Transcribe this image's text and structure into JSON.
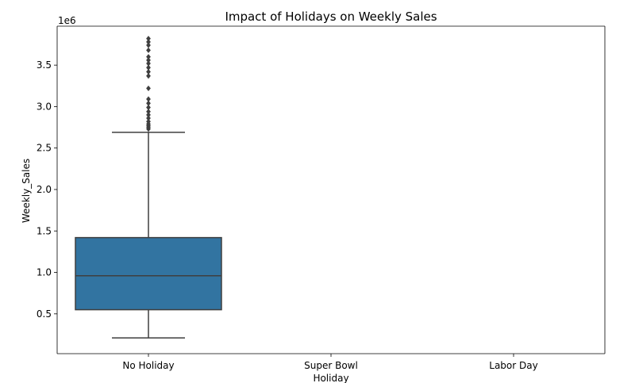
{
  "chart_data": {
    "type": "box",
    "title": "Impact of Holidays on Weekly Sales",
    "xlabel": "Holiday",
    "ylabel": "Weekly_Sales",
    "y_offset_label": "1e6",
    "categories": [
      "No Holiday",
      "Super Bowl",
      "Labor Day"
    ],
    "y_ticks": [
      0.5,
      1.0,
      1.5,
      2.0,
      2.5,
      3.0,
      3.5
    ],
    "y_tick_labels": [
      "0.5",
      "1.0",
      "1.5",
      "2.0",
      "2.5",
      "3.0",
      "3.5"
    ],
    "ylim": [
      0.02,
      3.97
    ],
    "grid": false,
    "colors": {
      "box_fill": "#3274a1",
      "box_line": "#3f3f3f"
    },
    "boxes": [
      {
        "category": "No Holiday",
        "whisker_low": 0.21,
        "q1": 0.55,
        "median": 0.96,
        "q3": 1.42,
        "whisker_high": 2.69,
        "outliers": [
          2.73,
          2.75,
          2.77,
          2.79,
          2.82,
          2.86,
          2.9,
          2.94,
          2.99,
          3.04,
          3.09,
          3.22,
          3.37,
          3.42,
          3.47,
          3.52,
          3.56,
          3.6,
          3.68,
          3.74,
          3.78,
          3.82
        ]
      }
    ]
  }
}
